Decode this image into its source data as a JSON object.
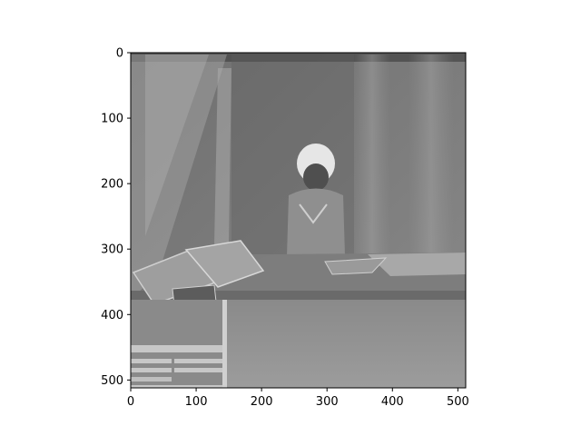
{
  "chart_data": {
    "type": "heatmap",
    "description": "grayscale image shown in image axes",
    "colormap": "gray",
    "image_width": 512,
    "image_height": 512,
    "xlim": [
      0,
      512
    ],
    "ylim": [
      512,
      0
    ],
    "x_ticks": [
      0,
      100,
      200,
      300,
      400,
      500
    ],
    "y_ticks": [
      0,
      100,
      200,
      300,
      400,
      500
    ],
    "x_tick_labels": [
      "0",
      "100",
      "200",
      "300",
      "400",
      "500"
    ],
    "y_tick_labels": [
      "0",
      "100",
      "200",
      "300",
      "400",
      "500"
    ],
    "title": "",
    "xlabel": "",
    "ylabel": "",
    "grid": false,
    "legend": "none"
  }
}
